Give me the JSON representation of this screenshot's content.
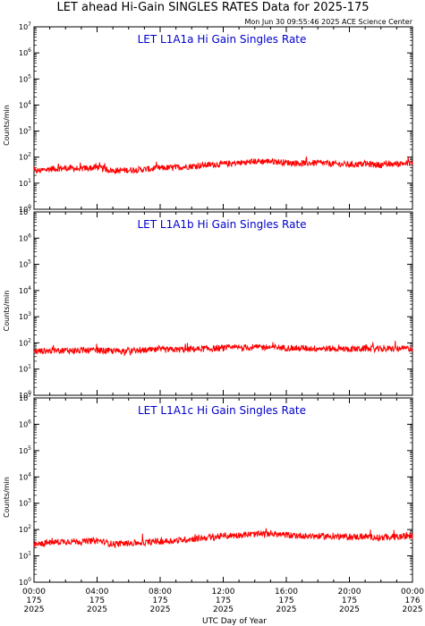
{
  "title": "LET ahead Hi-Gain SINGLES RATES Data for 2025-175",
  "timestamp": "Mon Jun 30 09:55:46 2025 ACE Science Center",
  "colors": {
    "trace": "#ff0000",
    "panel_title": "#0000cc",
    "axis": "#000000"
  },
  "chart_data": [
    {
      "type": "line",
      "title": "LET L1A1a Hi Gain Singles Rate",
      "ylabel": "Counts/min",
      "yscale": "log",
      "ylim": [
        1,
        10000000
      ],
      "y_ticks": [
        {
          "base": "10",
          "exp": "0"
        },
        {
          "base": "10",
          "exp": "1"
        },
        {
          "base": "10",
          "exp": "2"
        },
        {
          "base": "10",
          "exp": "3"
        },
        {
          "base": "10",
          "exp": "4"
        },
        {
          "base": "10",
          "exp": "5"
        },
        {
          "base": "10",
          "exp": "6"
        },
        {
          "base": "10",
          "exp": "7"
        }
      ],
      "x_hours": [
        0,
        1,
        2,
        3,
        4,
        5,
        6,
        7,
        8,
        9,
        10,
        11,
        12,
        13,
        14,
        15,
        16,
        17,
        18,
        19,
        20,
        21,
        22,
        23,
        24
      ],
      "series": [
        {
          "values": [
            28,
            35,
            38,
            36,
            40,
            30,
            32,
            34,
            38,
            40,
            45,
            50,
            55,
            60,
            68,
            70,
            62,
            58,
            60,
            55,
            52,
            55,
            50,
            55,
            60
          ]
        }
      ]
    },
    {
      "type": "line",
      "title": "LET L1A1b Hi Gain Singles Rate",
      "ylabel": "Counts/min",
      "yscale": "log",
      "ylim": [
        1,
        10000000
      ],
      "y_ticks": [
        {
          "base": "10",
          "exp": "0"
        },
        {
          "base": "10",
          "exp": "1"
        },
        {
          "base": "10",
          "exp": "2"
        },
        {
          "base": "10",
          "exp": "3"
        },
        {
          "base": "10",
          "exp": "4"
        },
        {
          "base": "10",
          "exp": "5"
        },
        {
          "base": "10",
          "exp": "6"
        },
        {
          "base": "10",
          "exp": "7"
        }
      ],
      "x_hours": [
        0,
        1,
        2,
        3,
        4,
        5,
        6,
        7,
        8,
        9,
        10,
        11,
        12,
        13,
        14,
        15,
        16,
        17,
        18,
        19,
        20,
        21,
        22,
        23,
        24
      ],
      "series": [
        {
          "values": [
            48,
            50,
            52,
            50,
            52,
            48,
            50,
            52,
            54,
            55,
            58,
            60,
            62,
            65,
            68,
            68,
            65,
            62,
            62,
            60,
            58,
            60,
            58,
            60,
            62
          ]
        }
      ]
    },
    {
      "type": "line",
      "title": "LET L1A1c Hi Gain Singles Rate",
      "ylabel": "Counts/min",
      "yscale": "log",
      "ylim": [
        1,
        10000000
      ],
      "y_ticks": [
        {
          "base": "10",
          "exp": "0"
        },
        {
          "base": "10",
          "exp": "1"
        },
        {
          "base": "10",
          "exp": "2"
        },
        {
          "base": "10",
          "exp": "3"
        },
        {
          "base": "10",
          "exp": "4"
        },
        {
          "base": "10",
          "exp": "5"
        },
        {
          "base": "10",
          "exp": "6"
        },
        {
          "base": "10",
          "exp": "7"
        }
      ],
      "x_hours": [
        0,
        1,
        2,
        3,
        4,
        5,
        6,
        7,
        8,
        9,
        10,
        11,
        12,
        13,
        14,
        15,
        16,
        17,
        18,
        19,
        20,
        21,
        22,
        23,
        24
      ],
      "series": [
        {
          "values": [
            26,
            32,
            36,
            35,
            38,
            28,
            30,
            32,
            35,
            38,
            44,
            50,
            56,
            62,
            66,
            68,
            62,
            58,
            56,
            55,
            52,
            54,
            50,
            52,
            58
          ]
        }
      ]
    }
  ],
  "x_axis": {
    "label": "UTC Day of Year",
    "ticks": [
      {
        "hour": 0,
        "time": "00:00",
        "doy": "175",
        "year": "2025"
      },
      {
        "hour": 4,
        "time": "04:00",
        "doy": "175",
        "year": "2025"
      },
      {
        "hour": 8,
        "time": "08:00",
        "doy": "175",
        "year": "2025"
      },
      {
        "hour": 12,
        "time": "12:00",
        "doy": "175",
        "year": "2025"
      },
      {
        "hour": 16,
        "time": "16:00",
        "doy": "175",
        "year": "2025"
      },
      {
        "hour": 20,
        "time": "20:00",
        "doy": "175",
        "year": "2025"
      },
      {
        "hour": 24,
        "time": "00:00",
        "doy": "176",
        "year": "2025"
      }
    ]
  }
}
